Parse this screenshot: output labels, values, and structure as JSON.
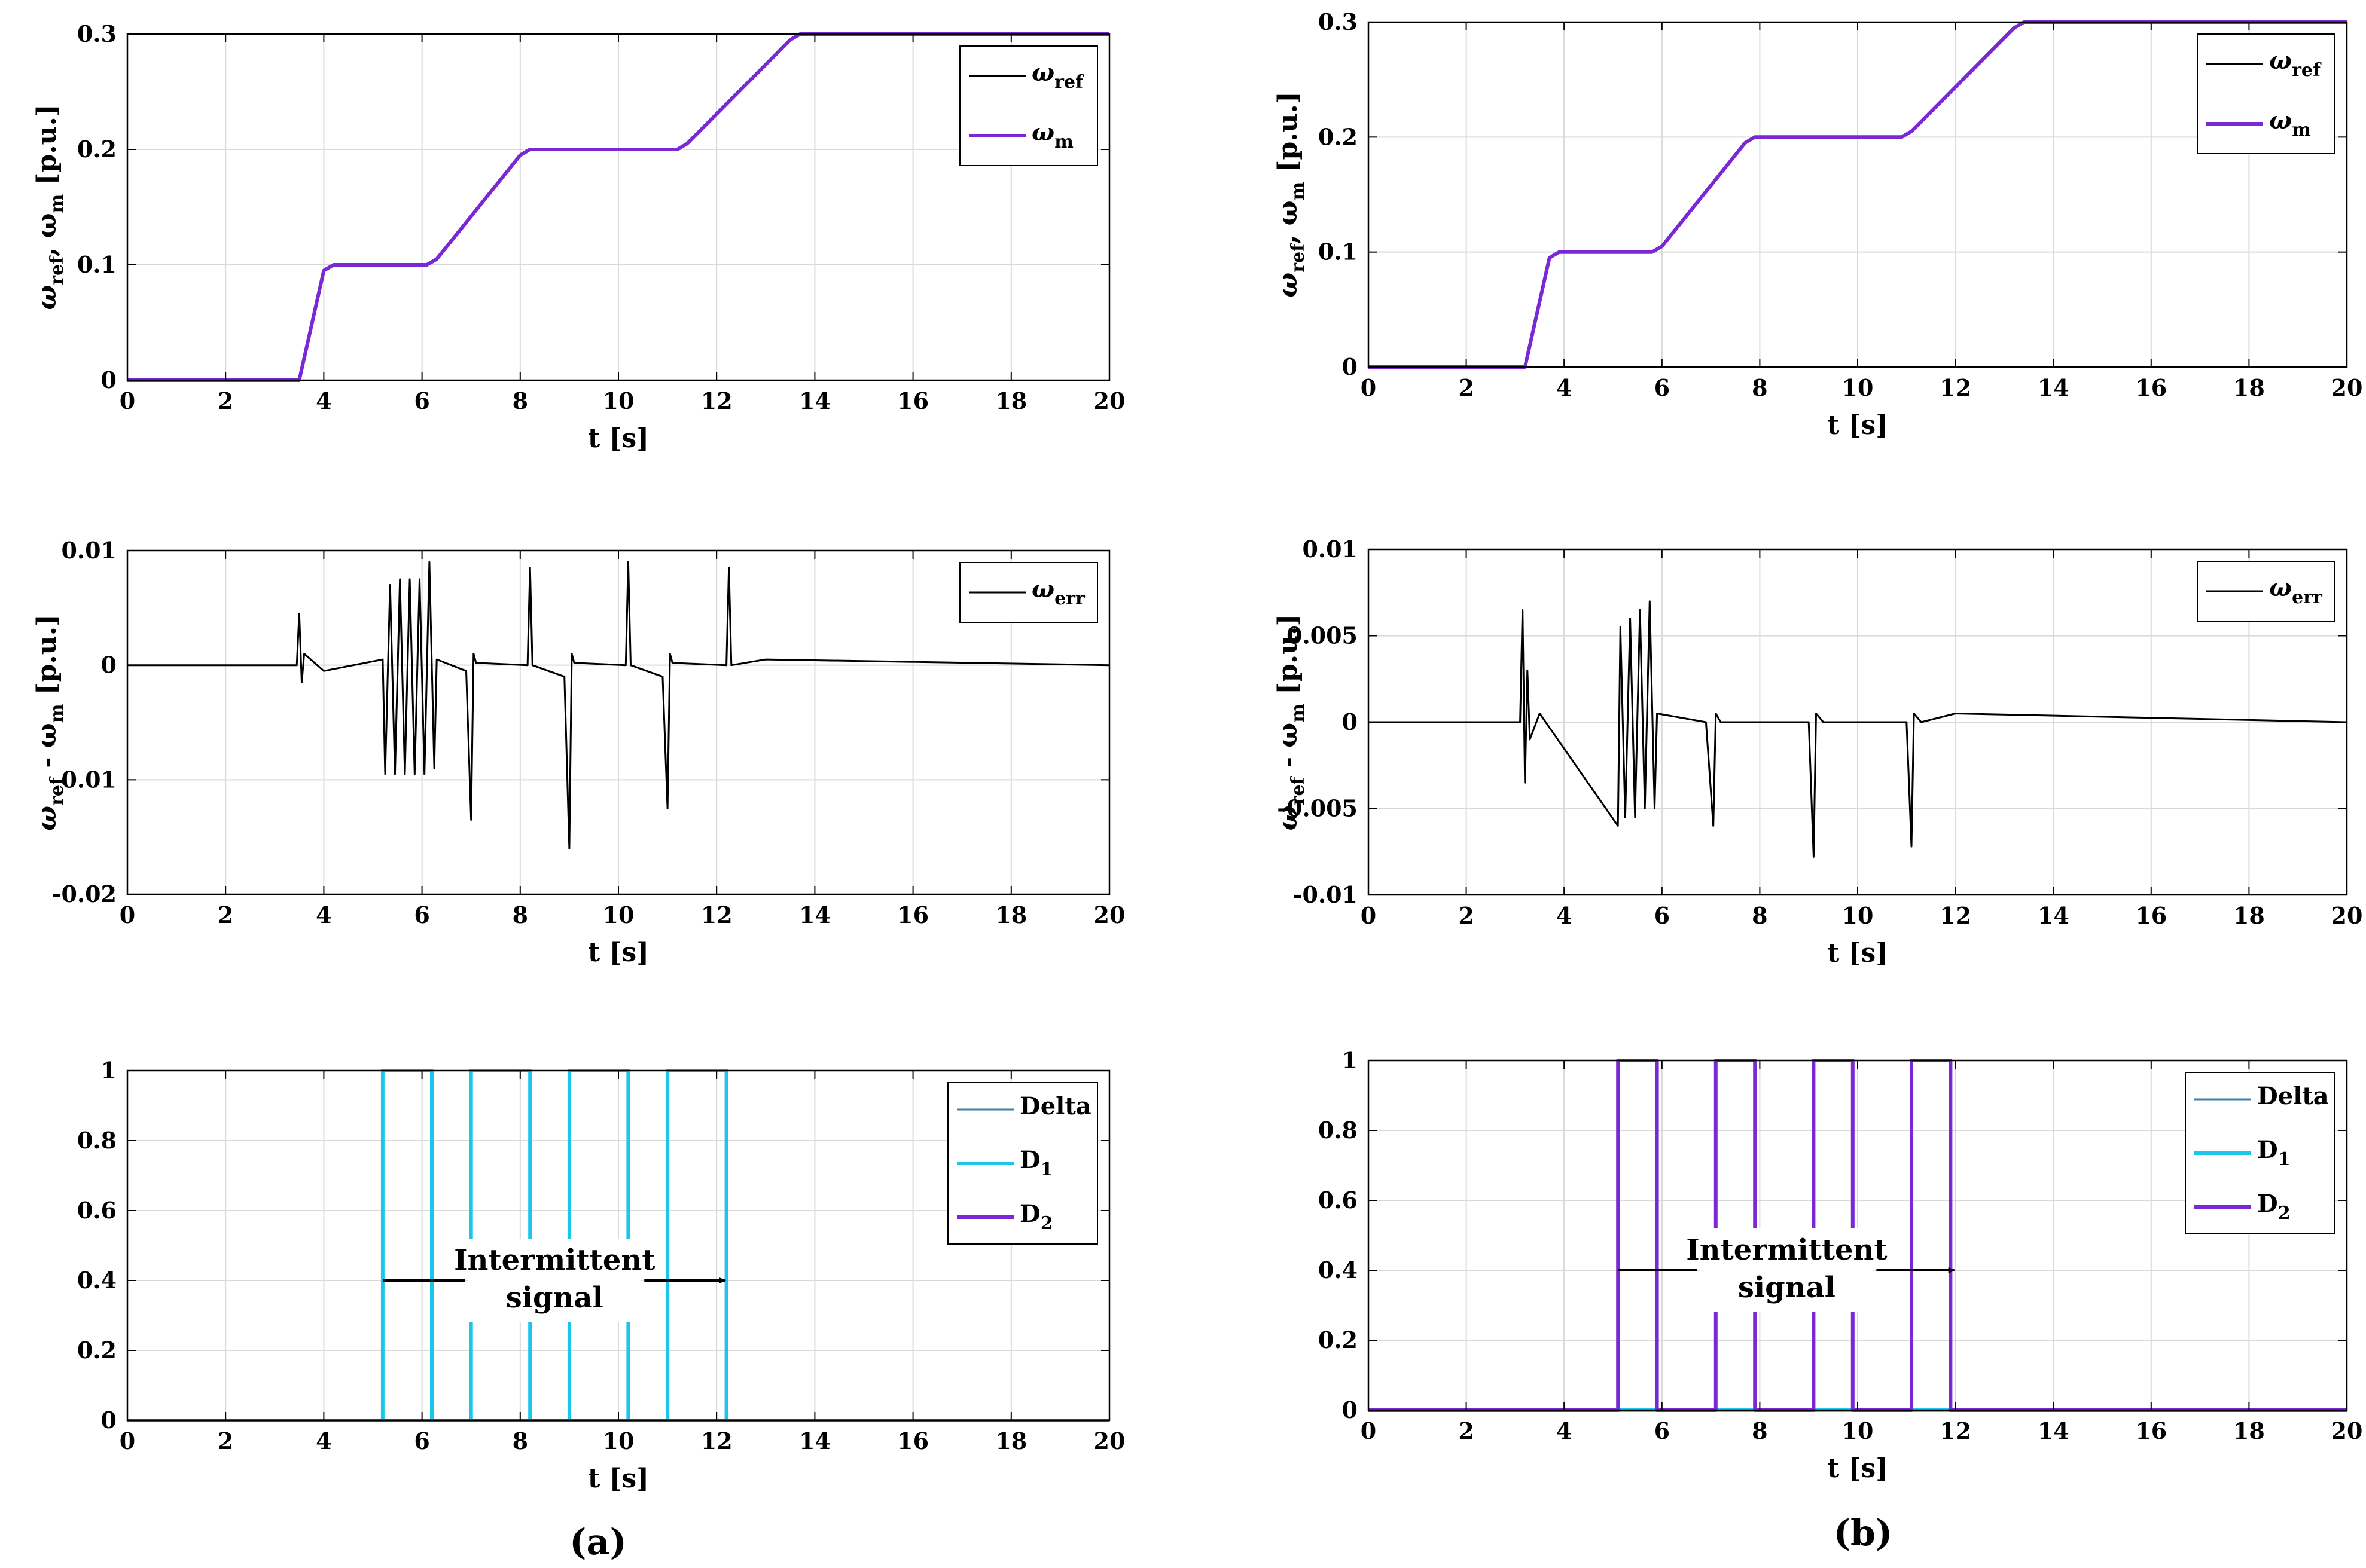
{
  "colors": {
    "black": "#000000",
    "purple": "#7A28D6",
    "cyan": "#1CC6EB",
    "delta": "#3E7FA6",
    "grid": "#d9d9d9"
  },
  "panel_labels": [
    "(a)",
    "(b)"
  ],
  "chart_data": [
    {
      "id": "a_speed",
      "type": "line",
      "xlabel": "t [s]",
      "xlim": [
        0,
        20
      ],
      "xticks": [
        0,
        2,
        4,
        6,
        8,
        10,
        12,
        14,
        16,
        18,
        20
      ],
      "ylabel": {
        "main": "ω",
        "sub1": "ref",
        "mid": ", ω",
        "sub2": "m",
        "unit": " [p.u.]"
      },
      "ylim": [
        0,
        0.3
      ],
      "yticks": [
        {
          "v": 0,
          "t": "0"
        },
        {
          "v": 0.1,
          "t": "0.1"
        },
        {
          "v": 0.2,
          "t": "0.2"
        },
        {
          "v": 0.3,
          "t": "0.3"
        }
      ],
      "grid": true,
      "legend": "top-right",
      "series": [
        {
          "name": "ω",
          "sub": "ref",
          "color": "black",
          "x": [
            0,
            3.5,
            4,
            4.2,
            6.1,
            6.3,
            8,
            8.2,
            11.2,
            11.4,
            13.5,
            13.7,
            20
          ],
          "y": [
            0,
            0,
            0.095,
            0.1,
            0.1,
            0.105,
            0.195,
            0.2,
            0.2,
            0.205,
            0.295,
            0.3,
            0.3
          ]
        },
        {
          "name": "ω",
          "sub": "m",
          "color": "purple",
          "x": [
            0,
            3.5,
            4,
            4.2,
            6.1,
            6.3,
            8,
            8.2,
            11.2,
            11.4,
            13.5,
            13.7,
            20
          ],
          "y": [
            0,
            0,
            0.095,
            0.1,
            0.1,
            0.105,
            0.195,
            0.2,
            0.2,
            0.205,
            0.295,
            0.3,
            0.3
          ]
        }
      ]
    },
    {
      "id": "b_speed",
      "type": "line",
      "xlabel": "t [s]",
      "xlim": [
        0,
        20
      ],
      "xticks": [
        0,
        2,
        4,
        6,
        8,
        10,
        12,
        14,
        16,
        18,
        20
      ],
      "ylabel": {
        "main": "ω",
        "sub1": "ref",
        "mid": ", ω",
        "sub2": "m",
        "unit": " [p.u.]"
      },
      "ylim": [
        0,
        0.3
      ],
      "yticks": [
        {
          "v": 0,
          "t": "0"
        },
        {
          "v": 0.1,
          "t": "0.1"
        },
        {
          "v": 0.2,
          "t": "0.2"
        },
        {
          "v": 0.3,
          "t": "0.3"
        }
      ],
      "grid": true,
      "legend": "top-right",
      "series": [
        {
          "name": "ω",
          "sub": "ref",
          "color": "black",
          "x": [
            0,
            3.2,
            3.7,
            3.9,
            5.8,
            6.0,
            7.7,
            7.9,
            10.9,
            11.1,
            13.2,
            13.4,
            20
          ],
          "y": [
            0,
            0,
            0.095,
            0.1,
            0.1,
            0.105,
            0.195,
            0.2,
            0.2,
            0.205,
            0.295,
            0.3,
            0.3
          ]
        },
        {
          "name": "ω",
          "sub": "m",
          "color": "purple",
          "x": [
            0,
            3.2,
            3.7,
            3.9,
            5.8,
            6.0,
            7.7,
            7.9,
            10.9,
            11.1,
            13.2,
            13.4,
            20
          ],
          "y": [
            0,
            0,
            0.095,
            0.1,
            0.1,
            0.105,
            0.195,
            0.2,
            0.2,
            0.205,
            0.295,
            0.3,
            0.3
          ]
        }
      ]
    },
    {
      "id": "a_error",
      "type": "line",
      "xlabel": "t [s]",
      "xlim": [
        0,
        20
      ],
      "xticks": [
        0,
        2,
        4,
        6,
        8,
        10,
        12,
        14,
        16,
        18,
        20
      ],
      "ylabel": {
        "main": "ω",
        "sub1": "ref",
        "mid": " - ω",
        "sub2": "m",
        "unit": " [p.u.]"
      },
      "ylim": [
        -0.02,
        0.01
      ],
      "yticks": [
        {
          "v": -0.02,
          "t": "-0.02"
        },
        {
          "v": -0.01,
          "t": "-0.01"
        },
        {
          "v": 0,
          "t": "0"
        },
        {
          "v": 0.01,
          "t": "0.01"
        }
      ],
      "grid": true,
      "legend": "top-right",
      "series": [
        {
          "name": "ω",
          "sub": "err",
          "color": "black",
          "x": [
            0,
            3.45,
            3.5,
            3.55,
            3.6,
            4.0,
            5.2,
            5.25,
            5.35,
            5.45,
            5.55,
            5.65,
            5.75,
            5.85,
            5.95,
            6.05,
            6.15,
            6.25,
            6.3,
            6.9,
            7.0,
            7.05,
            7.1,
            8.15,
            8.2,
            8.25,
            8.9,
            9.0,
            9.05,
            9.1,
            10.15,
            10.2,
            10.25,
            10.9,
            11.0,
            11.05,
            11.1,
            12.2,
            12.25,
            12.3,
            13.0,
            20
          ],
          "y": [
            0,
            0,
            0.0045,
            -0.0015,
            0.001,
            -0.0005,
            0.0005,
            -0.0095,
            0.007,
            -0.0095,
            0.0075,
            -0.0095,
            0.0075,
            -0.0095,
            0.0075,
            -0.0095,
            0.009,
            -0.009,
            0.0005,
            -0.0005,
            -0.0135,
            0.001,
            0.0002,
            0.0,
            0.0085,
            0.0,
            -0.001,
            -0.016,
            0.001,
            0.0002,
            0.0,
            0.009,
            0.0,
            -0.001,
            -0.0125,
            0.001,
            0.0002,
            0.0,
            0.0085,
            0.0,
            0.0005,
            0.0
          ]
        }
      ]
    },
    {
      "id": "b_error",
      "type": "line",
      "xlabel": "t [s]",
      "xlim": [
        0,
        20
      ],
      "xticks": [
        0,
        2,
        4,
        6,
        8,
        10,
        12,
        14,
        16,
        18,
        20
      ],
      "ylabel": {
        "main": "ω",
        "sub1": "ref",
        "mid": " - ω",
        "sub2": "m",
        "unit": " [p.u.]"
      },
      "ylim": [
        -0.01,
        0.01
      ],
      "yticks": [
        {
          "v": -0.01,
          "t": "-0.01"
        },
        {
          "v": -0.005,
          "t": "-0.005"
        },
        {
          "v": 0,
          "t": "0"
        },
        {
          "v": 0.005,
          "t": "0.005"
        },
        {
          "v": 0.01,
          "t": "0.01"
        }
      ],
      "grid": true,
      "legend": "top-right",
      "series": [
        {
          "name": "ω",
          "sub": "err",
          "color": "black",
          "x": [
            0,
            3.1,
            3.15,
            3.2,
            3.25,
            3.3,
            3.5,
            5.1,
            5.15,
            5.25,
            5.35,
            5.45,
            5.55,
            5.65,
            5.75,
            5.85,
            5.9,
            6.9,
            7.05,
            7.1,
            7.2,
            9.0,
            9.1,
            9.15,
            9.3,
            11.0,
            11.1,
            11.15,
            11.3,
            12.0,
            20
          ],
          "y": [
            0,
            0,
            0.0065,
            -0.0035,
            0.003,
            -0.001,
            0.0005,
            -0.006,
            0.0055,
            -0.0055,
            0.006,
            -0.0055,
            0.0065,
            -0.005,
            0.007,
            -0.005,
            0.0005,
            0.0,
            -0.006,
            0.0005,
            0.0,
            0.0,
            -0.0078,
            0.0005,
            0.0,
            0.0,
            -0.0072,
            0.0005,
            0.0,
            0.0005,
            0.0
          ]
        }
      ]
    },
    {
      "id": "a_signal",
      "type": "line",
      "xlabel": "t [s]",
      "xlim": [
        0,
        20
      ],
      "xticks": [
        0,
        2,
        4,
        6,
        8,
        10,
        12,
        14,
        16,
        18,
        20
      ],
      "ylabel": null,
      "ylim": [
        0,
        1
      ],
      "yticks": [
        {
          "v": 0,
          "t": "0"
        },
        {
          "v": 0.2,
          "t": "0.2"
        },
        {
          "v": 0.4,
          "t": "0.4"
        },
        {
          "v": 0.6,
          "t": "0.6"
        },
        {
          "v": 0.8,
          "t": "0.8"
        },
        {
          "v": 1,
          "t": "1"
        }
      ],
      "grid": true,
      "legend": "top-right",
      "annotation": {
        "line1": "Intermittent",
        "line2": "signal",
        "x_start": 5.2,
        "x_end": 12.2,
        "y": 0.4
      },
      "series": [
        {
          "name": "Delta",
          "sub": "",
          "color": "delta",
          "x": [
            0,
            20
          ],
          "y": [
            0,
            0
          ]
        },
        {
          "name": "D",
          "sub": "1",
          "color": "cyan",
          "x": [
            0,
            5.2,
            5.2,
            6.2,
            6.2,
            7.0,
            7.0,
            8.2,
            8.2,
            9.0,
            9.0,
            10.2,
            10.2,
            11.0,
            11.0,
            12.2,
            12.2,
            20
          ],
          "y": [
            0,
            0,
            1,
            1,
            0,
            0,
            1,
            1,
            0,
            0,
            1,
            1,
            0,
            0,
            1,
            1,
            0,
            0
          ]
        },
        {
          "name": "D",
          "sub": "2",
          "color": "purple",
          "x": [
            0,
            20
          ],
          "y": [
            0,
            0
          ]
        }
      ]
    },
    {
      "id": "b_signal",
      "type": "line",
      "xlabel": "t [s]",
      "xlim": [
        0,
        20
      ],
      "xticks": [
        0,
        2,
        4,
        6,
        8,
        10,
        12,
        14,
        16,
        18,
        20
      ],
      "ylabel": null,
      "ylim": [
        0,
        1
      ],
      "yticks": [
        {
          "v": 0,
          "t": "0"
        },
        {
          "v": 0.2,
          "t": "0.2"
        },
        {
          "v": 0.4,
          "t": "0.4"
        },
        {
          "v": 0.6,
          "t": "0.6"
        },
        {
          "v": 0.8,
          "t": "0.8"
        },
        {
          "v": 1,
          "t": "1"
        }
      ],
      "grid": true,
      "legend": "top-right",
      "annotation": {
        "line1": "Intermittent",
        "line2": "signal",
        "x_start": 5.1,
        "x_end": 12.0,
        "y": 0.4
      },
      "series": [
        {
          "name": "Delta",
          "sub": "",
          "color": "delta",
          "x": [
            0,
            20
          ],
          "y": [
            0,
            0
          ]
        },
        {
          "name": "D",
          "sub": "1",
          "color": "cyan",
          "x": [
            0,
            20
          ],
          "y": [
            0,
            0
          ]
        },
        {
          "name": "D",
          "sub": "2",
          "color": "purple",
          "x": [
            0,
            5.1,
            5.1,
            5.9,
            5.9,
            7.1,
            7.1,
            7.9,
            7.9,
            9.1,
            9.1,
            9.9,
            9.9,
            11.1,
            11.1,
            11.9,
            11.9,
            20
          ],
          "y": [
            0,
            0,
            1,
            1,
            0,
            0,
            1,
            1,
            0,
            0,
            1,
            1,
            0,
            0,
            1,
            1,
            0,
            0
          ]
        }
      ]
    }
  ]
}
